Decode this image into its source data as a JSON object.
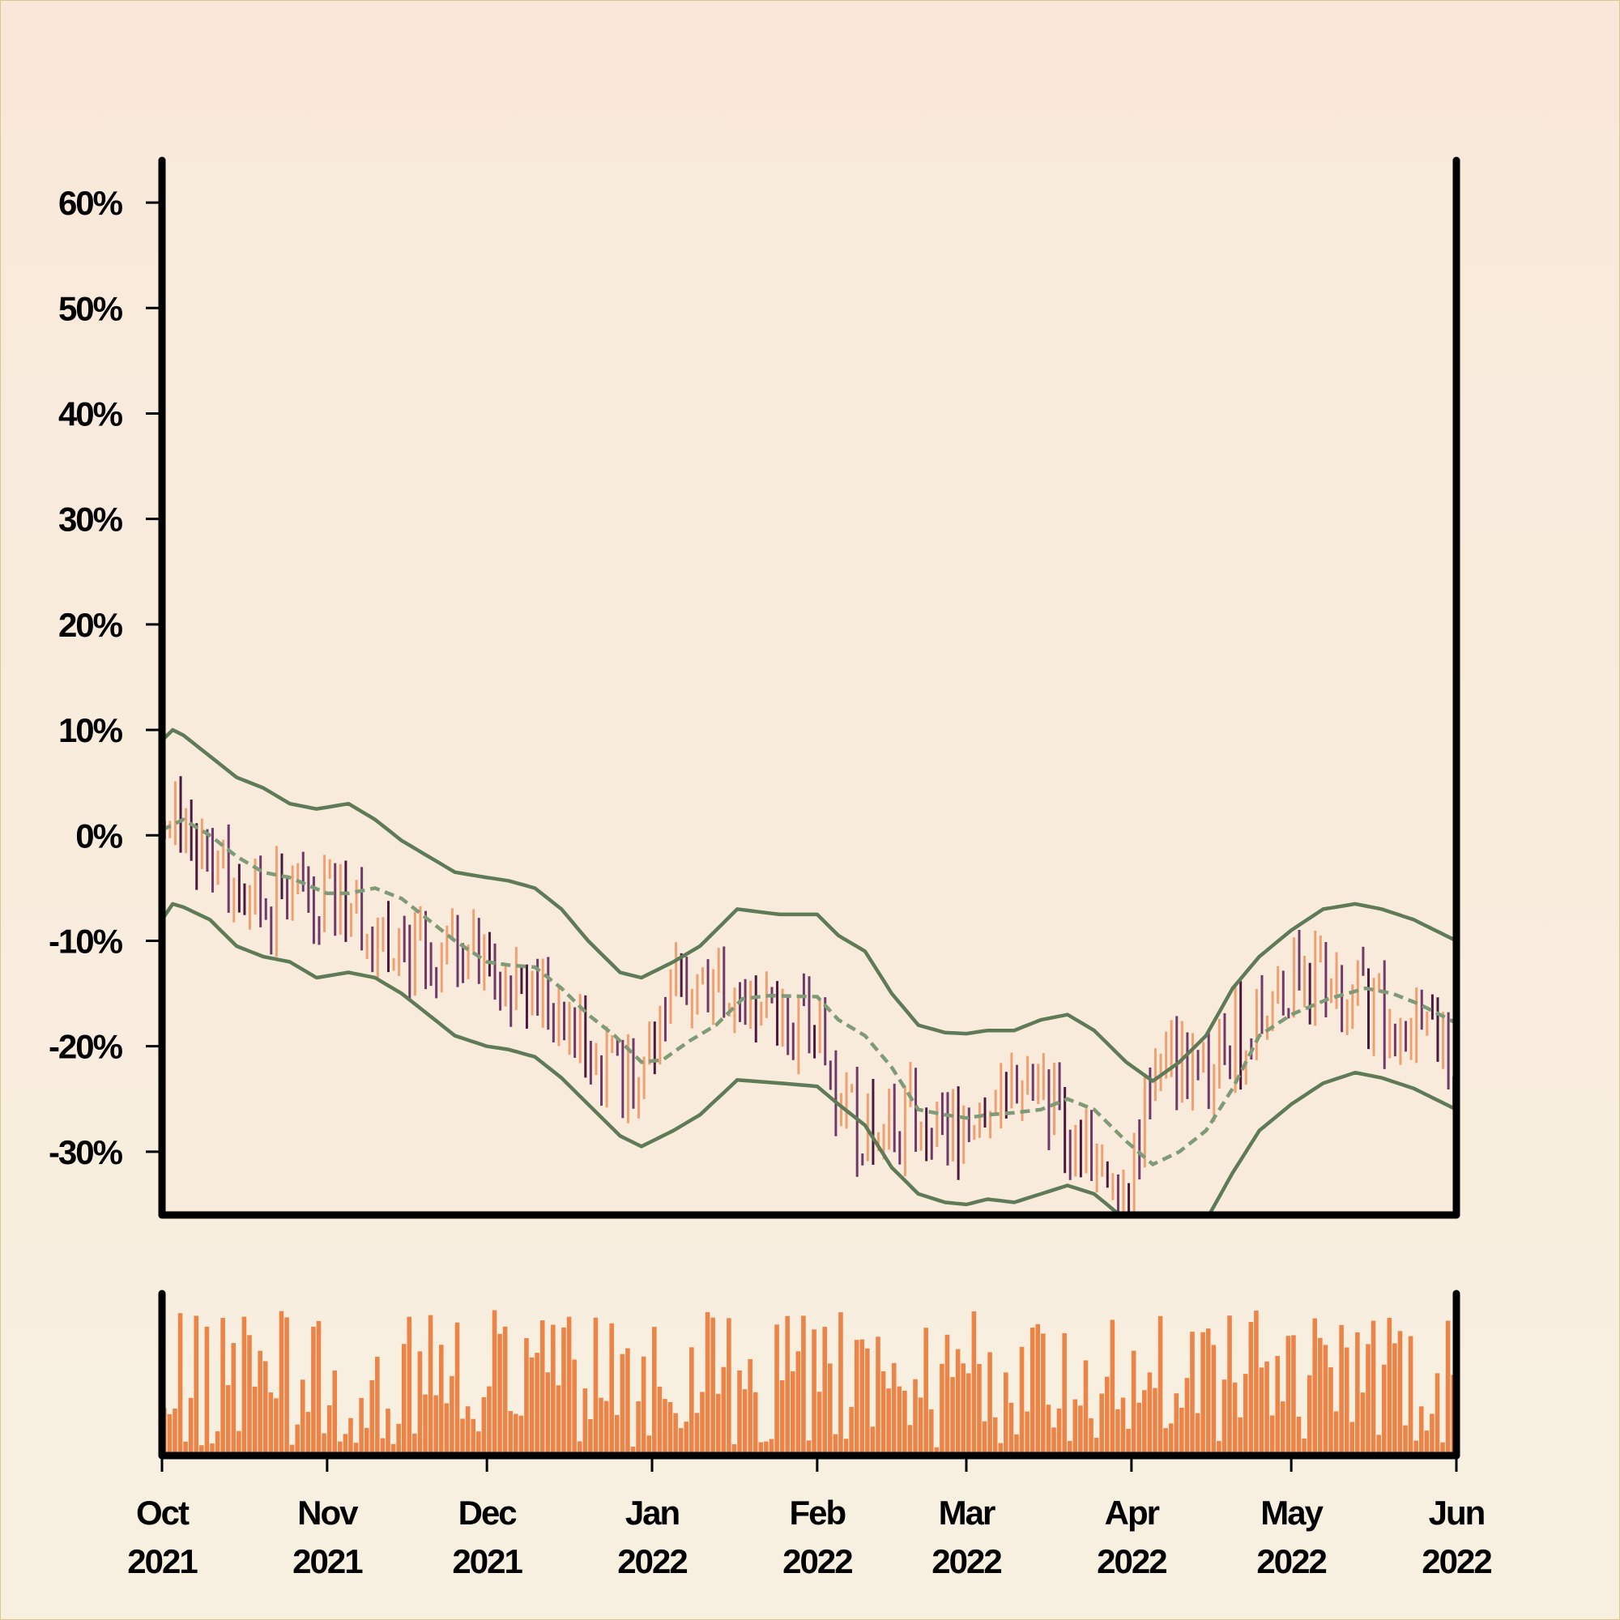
{
  "chart_data": {
    "type": "ohlc",
    "title": "",
    "xlabel": "",
    "ylabel": "",
    "x_range": [
      "2021-10-01",
      "2022-06-01"
    ],
    "ylim": [
      -36,
      64
    ],
    "y_ticks": [
      60,
      50,
      40,
      30,
      20,
      10,
      0,
      -10,
      -20,
      -30
    ],
    "y_tick_labels": [
      "60%",
      "50%",
      "40%",
      "30%",
      "20%",
      "10%",
      "0%",
      "-10%",
      "-20%",
      "-30%"
    ],
    "x_ticks": [
      {
        "date": "2021-10-01",
        "month": "Oct",
        "year": "2021"
      },
      {
        "date": "2021-11-01",
        "month": "Nov",
        "year": "2021"
      },
      {
        "date": "2021-12-01",
        "month": "Dec",
        "year": "2021"
      },
      {
        "date": "2022-01-01",
        "month": "Jan",
        "year": "2022"
      },
      {
        "date": "2022-02-01",
        "month": "Feb",
        "year": "2022"
      },
      {
        "date": "2022-03-01",
        "month": "Mar",
        "year": "2022"
      },
      {
        "date": "2022-04-01",
        "month": "Apr",
        "year": "2022"
      },
      {
        "date": "2022-05-01",
        "month": "May",
        "year": "2022"
      },
      {
        "date": "2022-06-01",
        "month": "Jun",
        "year": "2022"
      }
    ],
    "price_trend": [
      [
        "2021-10-01",
        0
      ],
      [
        "2021-10-05",
        2
      ],
      [
        "2021-10-10",
        -2
      ],
      [
        "2021-10-15",
        -5
      ],
      [
        "2021-10-20",
        -7
      ],
      [
        "2021-10-25",
        -6
      ],
      [
        "2021-11-01",
        -5
      ],
      [
        "2021-11-05",
        -6
      ],
      [
        "2021-11-10",
        -9
      ],
      [
        "2021-11-15",
        -11
      ],
      [
        "2021-11-20",
        -13
      ],
      [
        "2021-11-25",
        -11
      ],
      [
        "2021-12-01",
        -12
      ],
      [
        "2021-12-05",
        -13
      ],
      [
        "2021-12-10",
        -14
      ],
      [
        "2021-12-15",
        -18
      ],
      [
        "2021-12-20",
        -21
      ],
      [
        "2021-12-25",
        -23
      ],
      [
        "2021-12-30",
        -22
      ],
      [
        "2022-01-01",
        -18
      ],
      [
        "2022-01-05",
        -15
      ],
      [
        "2022-01-10",
        -14
      ],
      [
        "2022-01-15",
        -14
      ],
      [
        "2022-01-20",
        -17
      ],
      [
        "2022-01-25",
        -16
      ],
      [
        "2022-02-01",
        -19
      ],
      [
        "2022-02-05",
        -25
      ],
      [
        "2022-02-10",
        -28
      ],
      [
        "2022-02-15",
        -27
      ],
      [
        "2022-02-20",
        -27
      ],
      [
        "2022-02-25",
        -28
      ],
      [
        "2022-03-01",
        -26
      ],
      [
        "2022-03-05",
        -24
      ],
      [
        "2022-03-10",
        -25
      ],
      [
        "2022-03-15",
        -24
      ],
      [
        "2022-03-20",
        -28
      ],
      [
        "2022-03-25",
        -31
      ],
      [
        "2022-03-31",
        -33
      ],
      [
        "2022-04-03",
        -26
      ],
      [
        "2022-04-08",
        -21
      ],
      [
        "2022-04-15",
        -23
      ],
      [
        "2022-04-20",
        -19
      ],
      [
        "2022-04-25",
        -16
      ],
      [
        "2022-05-01",
        -14
      ],
      [
        "2022-05-08",
        -13
      ],
      [
        "2022-05-15",
        -16
      ],
      [
        "2022-05-20",
        -18
      ],
      [
        "2022-05-25",
        -20
      ],
      [
        "2022-06-01",
        -21
      ]
    ],
    "moving_average": [
      [
        "2021-10-01",
        0.5
      ],
      [
        "2021-10-05",
        1.5
      ],
      [
        "2021-10-10",
        0
      ],
      [
        "2021-10-15",
        -2
      ],
      [
        "2021-10-20",
        -3.5
      ],
      [
        "2021-10-25",
        -4
      ],
      [
        "2021-11-01",
        -5.5
      ],
      [
        "2021-11-05",
        -5.5
      ],
      [
        "2021-11-10",
        -5
      ],
      [
        "2021-11-15",
        -6
      ],
      [
        "2021-11-20",
        -8
      ],
      [
        "2021-11-25",
        -10
      ],
      [
        "2021-12-01",
        -12
      ],
      [
        "2021-12-05",
        -12.3
      ],
      [
        "2021-12-10",
        -12.5
      ],
      [
        "2021-12-15",
        -14.5
      ],
      [
        "2021-12-20",
        -17
      ],
      [
        "2021-12-25",
        -19
      ],
      [
        "2021-12-30",
        -21.5
      ],
      [
        "2022-01-03",
        -21.3
      ],
      [
        "2022-01-08",
        -19.5
      ],
      [
        "2022-01-13",
        -18
      ],
      [
        "2022-01-18",
        -15.5
      ],
      [
        "2022-01-23",
        -15.2
      ],
      [
        "2022-02-01",
        -15.3
      ],
      [
        "2022-02-05",
        -17.5
      ],
      [
        "2022-02-10",
        -19
      ],
      [
        "2022-02-15",
        -22
      ],
      [
        "2022-02-20",
        -26
      ],
      [
        "2022-02-25",
        -26.5
      ],
      [
        "2022-03-01",
        -26.8
      ],
      [
        "2022-03-05",
        -26.5
      ],
      [
        "2022-03-10",
        -26.3
      ],
      [
        "2022-03-15",
        -26
      ],
      [
        "2022-03-20",
        -25
      ],
      [
        "2022-03-25",
        -26
      ],
      [
        "2022-03-31",
        -29
      ],
      [
        "2022-04-05",
        -31.2
      ],
      [
        "2022-04-10",
        -30
      ],
      [
        "2022-04-15",
        -28
      ],
      [
        "2022-04-20",
        -24
      ],
      [
        "2022-04-25",
        -19
      ],
      [
        "2022-05-01",
        -17
      ],
      [
        "2022-05-08",
        -15.5
      ],
      [
        "2022-05-15",
        -14.5
      ],
      [
        "2022-05-20",
        -15
      ],
      [
        "2022-05-25",
        -16
      ],
      [
        "2022-06-01",
        -17.8
      ]
    ],
    "upper_band": [
      [
        "2021-10-01",
        9
      ],
      [
        "2021-10-03",
        10
      ],
      [
        "2021-10-05",
        9.5
      ],
      [
        "2021-10-10",
        7.5
      ],
      [
        "2021-10-15",
        5.5
      ],
      [
        "2021-10-20",
        4.5
      ],
      [
        "2021-10-25",
        3
      ],
      [
        "2021-10-30",
        2.5
      ],
      [
        "2021-11-05",
        3
      ],
      [
        "2021-11-10",
        1.5
      ],
      [
        "2021-11-15",
        -0.5
      ],
      [
        "2021-11-20",
        -2
      ],
      [
        "2021-11-25",
        -3.5
      ],
      [
        "2021-12-01",
        -4
      ],
      [
        "2021-12-05",
        -4.3
      ],
      [
        "2021-12-10",
        -5
      ],
      [
        "2021-12-15",
        -7
      ],
      [
        "2021-12-20",
        -10
      ],
      [
        "2021-12-26",
        -13
      ],
      [
        "2021-12-30",
        -13.5
      ],
      [
        "2022-01-05",
        -12
      ],
      [
        "2022-01-10",
        -10.5
      ],
      [
        "2022-01-17",
        -7
      ],
      [
        "2022-01-25",
        -7.5
      ],
      [
        "2022-02-01",
        -7.5
      ],
      [
        "2022-02-05",
        -9.5
      ],
      [
        "2022-02-10",
        -11
      ],
      [
        "2022-02-15",
        -15
      ],
      [
        "2022-02-20",
        -18
      ],
      [
        "2022-02-25",
        -18.7
      ],
      [
        "2022-03-01",
        -18.8
      ],
      [
        "2022-03-05",
        -18.5
      ],
      [
        "2022-03-10",
        -18.5
      ],
      [
        "2022-03-15",
        -17.5
      ],
      [
        "2022-03-20",
        -17
      ],
      [
        "2022-03-25",
        -18.5
      ],
      [
        "2022-03-31",
        -21.5
      ],
      [
        "2022-04-05",
        -23.3
      ],
      [
        "2022-04-10",
        -21.5
      ],
      [
        "2022-04-15",
        -19
      ],
      [
        "2022-04-20",
        -14.5
      ],
      [
        "2022-04-25",
        -11.5
      ],
      [
        "2022-05-01",
        -9
      ],
      [
        "2022-05-07",
        -7
      ],
      [
        "2022-05-13",
        -6.5
      ],
      [
        "2022-05-18",
        -7
      ],
      [
        "2022-05-24",
        -8
      ],
      [
        "2022-06-01",
        -10
      ]
    ],
    "lower_band": [
      [
        "2021-10-01",
        -8
      ],
      [
        "2021-10-03",
        -6.5
      ],
      [
        "2021-10-05",
        -6.8
      ],
      [
        "2021-10-10",
        -8
      ],
      [
        "2021-10-15",
        -10.5
      ],
      [
        "2021-10-20",
        -11.5
      ],
      [
        "2021-10-25",
        -12
      ],
      [
        "2021-10-30",
        -13.5
      ],
      [
        "2021-11-05",
        -13
      ],
      [
        "2021-11-10",
        -13.5
      ],
      [
        "2021-11-15",
        -15
      ],
      [
        "2021-11-20",
        -17
      ],
      [
        "2021-11-25",
        -19
      ],
      [
        "2021-12-01",
        -20
      ],
      [
        "2021-12-05",
        -20.3
      ],
      [
        "2021-12-10",
        -21
      ],
      [
        "2021-12-15",
        -23
      ],
      [
        "2021-12-20",
        -25.5
      ],
      [
        "2021-12-26",
        -28.5
      ],
      [
        "2021-12-30",
        -29.5
      ],
      [
        "2022-01-05",
        -28
      ],
      [
        "2022-01-10",
        -26.5
      ],
      [
        "2022-01-17",
        -23.2
      ],
      [
        "2022-01-25",
        -23.5
      ],
      [
        "2022-02-01",
        -23.8
      ],
      [
        "2022-02-05",
        -25.5
      ],
      [
        "2022-02-10",
        -27.5
      ],
      [
        "2022-02-15",
        -31.5
      ],
      [
        "2022-02-20",
        -34
      ],
      [
        "2022-02-25",
        -34.8
      ],
      [
        "2022-03-01",
        -35
      ],
      [
        "2022-03-05",
        -34.5
      ],
      [
        "2022-03-10",
        -34.8
      ],
      [
        "2022-03-15",
        -34
      ],
      [
        "2022-03-20",
        -33.2
      ],
      [
        "2022-03-25",
        -34
      ],
      [
        "2022-03-31",
        -36.5
      ],
      [
        "2022-04-05",
        -39
      ],
      [
        "2022-04-10",
        -38
      ],
      [
        "2022-04-15",
        -36.5
      ],
      [
        "2022-04-20",
        -32
      ],
      [
        "2022-04-25",
        -28
      ],
      [
        "2022-05-01",
        -25.5
      ],
      [
        "2022-05-07",
        -23.5
      ],
      [
        "2022-05-13",
        -22.5
      ],
      [
        "2022-05-18",
        -23
      ],
      [
        "2022-05-24",
        -24
      ],
      [
        "2022-06-01",
        -26
      ]
    ],
    "colors": {
      "background": "#f8efe0",
      "plot_background": "#f9e8da",
      "up_bar": "#f0a070",
      "down_bar": "#6f3a6a",
      "dark_down_bar": "#4a1a3e",
      "band": "#5e7a56",
      "moving_average": "#7f9a76",
      "volume": "#ec8447",
      "axis": "#000000"
    },
    "grid": false,
    "legend": "none"
  }
}
